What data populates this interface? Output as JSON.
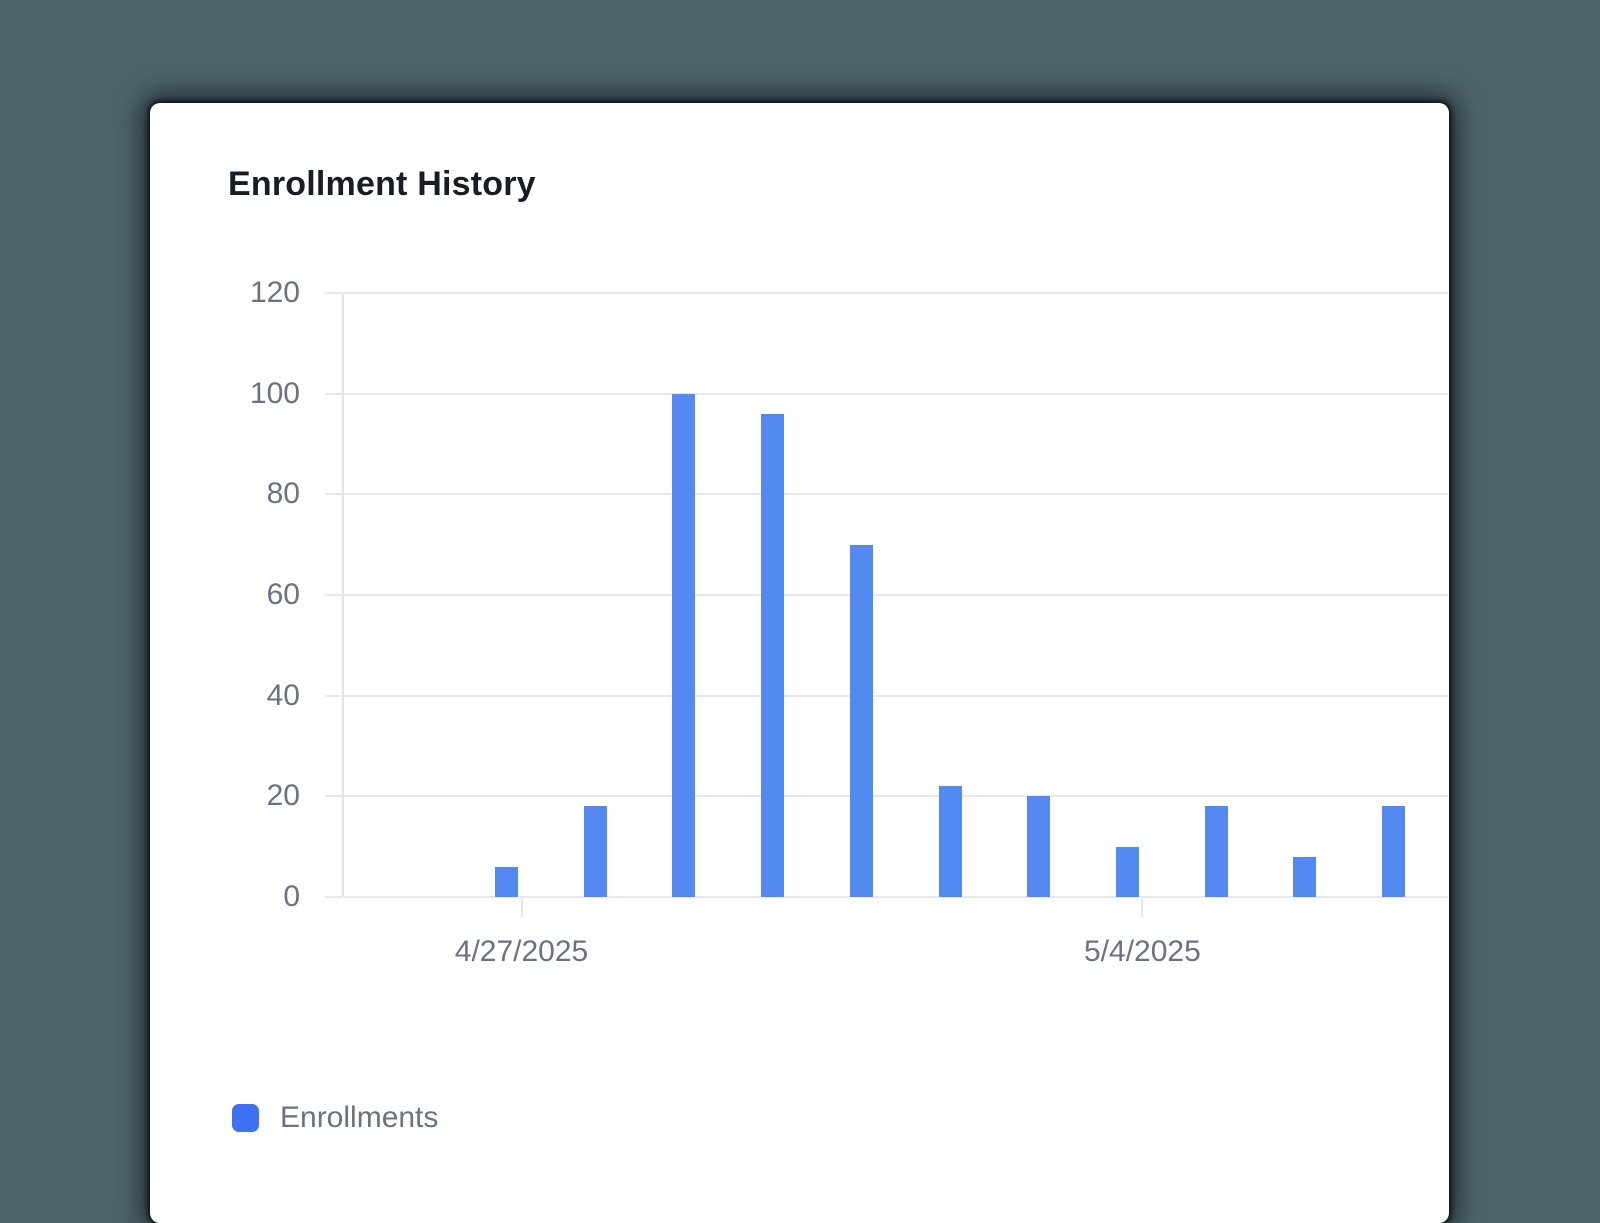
{
  "page": {
    "background_color": "#4e646d"
  },
  "card": {
    "background_color": "#ffffff"
  },
  "chart_data": {
    "type": "bar",
    "title": "Enrollment History",
    "series": [
      {
        "name": "Enrollments",
        "color": "#5389f0",
        "values": [
          6,
          18,
          100,
          96,
          70,
          22,
          20,
          10,
          18,
          8,
          18
        ]
      }
    ],
    "x_ticks": [
      {
        "label": "4/27/2025",
        "bar_index": 0
      },
      {
        "label": "5/4/2025",
        "bar_index": 7
      }
    ],
    "y_ticks": [
      0,
      20,
      40,
      60,
      80,
      100,
      120
    ],
    "ylim": [
      0,
      120
    ],
    "grid": true,
    "legend_position": "bottom-left",
    "colors": {
      "title_text": "#181c25",
      "axis_text": "#6b7280",
      "grid_line": "#e6e8ee",
      "axis_line": "#e2e5ea",
      "legend_swatch": "#3e70f2"
    }
  }
}
